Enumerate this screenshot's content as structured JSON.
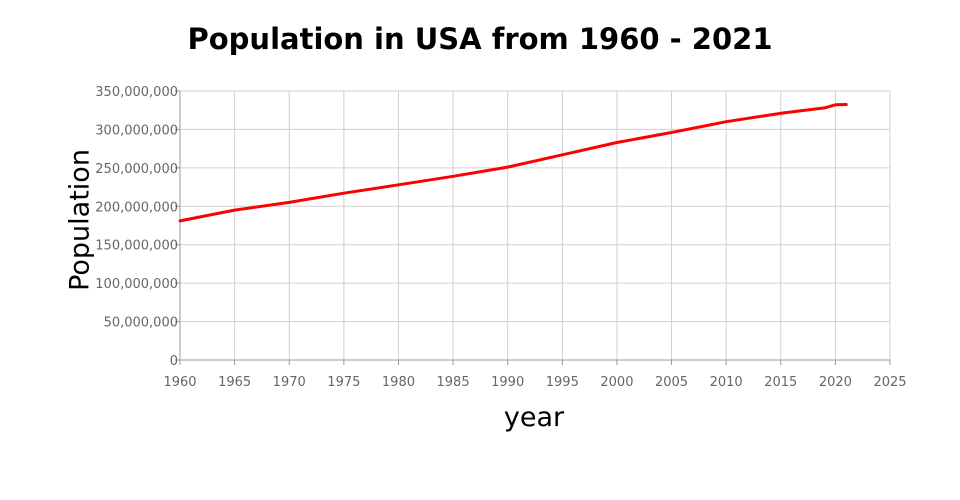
{
  "chart_data": {
    "type": "line",
    "title": "Population in USA from 1960 - 2021",
    "xlabel": "year",
    "ylabel": "Population",
    "xlim": [
      1960,
      2025
    ],
    "ylim": [
      0,
      350000000
    ],
    "x_ticks": [
      1960,
      1965,
      1970,
      1975,
      1980,
      1985,
      1990,
      1995,
      2000,
      2005,
      2010,
      2015,
      2020,
      2025
    ],
    "y_ticks": [
      0,
      50000000,
      100000000,
      150000000,
      200000000,
      250000000,
      300000000,
      350000000
    ],
    "x_tick_labels": [
      "1960",
      "1965",
      "1970",
      "1975",
      "1980",
      "1985",
      "1990",
      "1995",
      "2000",
      "2005",
      "2010",
      "2015",
      "2020",
      "2025"
    ],
    "y_tick_labels": [
      "0",
      "50,000,000",
      "100,000,000",
      "150,000,000",
      "200,000,000",
      "250,000,000",
      "300,000,000",
      "350,000,000"
    ],
    "grid": true,
    "legend": "none",
    "series": [
      {
        "color": "#ff0000",
        "x": [
          1960,
          1965,
          1970,
          1975,
          1980,
          1985,
          1990,
          1995,
          2000,
          2005,
          2010,
          2015,
          2019,
          2020,
          2021
        ],
        "values": [
          181000000,
          195000000,
          205000000,
          217000000,
          228000000,
          239000000,
          251000000,
          267000000,
          283000000,
          296000000,
          310000000,
          321000000,
          328000000,
          332000000,
          332500000
        ]
      }
    ]
  }
}
